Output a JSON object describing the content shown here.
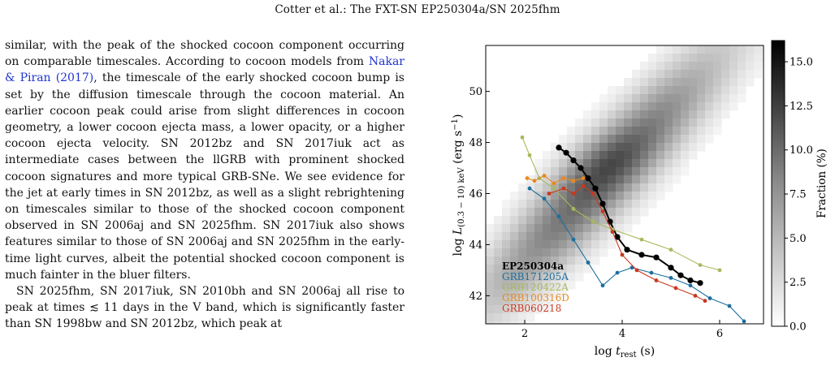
{
  "header": {
    "running_title": "Cotter et al.: The FXT-SN EP250304a/SN 2025fhm"
  },
  "body_text": {
    "p1_a": "similar, with the peak of the shocked cocoon component occurring on comparable timescales. According to cocoon models from ",
    "p1_cite": "Nakar & Piran (2017)",
    "p1_b": ", the timescale of the early shocked cocoon bump is set by the diffusion timescale through the cocoon material. An earlier cocoon peak could arise from slight differences in cocoon geometry, a lower cocoon ejecta mass, a lower opacity, or a higher cocoon ejecta velocity. SN 2012bz and SN 2017iuk act as intermediate cases between the llGRB with prominent shocked cocoon signatures and more typical GRB-SNe. We see evidence for the jet at early times in SN 2012bz, as well as a slight rebrightening on timescales similar to those of the shocked cocoon component observed in SN 2006aj and SN 2025fhm. SN 2017iuk also shows features similar to those of SN 2006aj and SN 2025fhm in the early-time light curves, albeit the potential shocked cocoon component is much fainter in the bluer filters.",
    "p2": "SN 2025fhm, SN 2017iuk, SN 2010bh and SN 2006aj all rise to peak at times ≲ 11 days in the V band, which is significantly faster than SN 1998bw and SN 2012bz, which peak at"
  },
  "chart_data": {
    "type": "scatter",
    "xlabel": "log t_rest (s)",
    "ylabel": "log L_(0.3−10) keV (erg s−1)",
    "xlim": [
      1.2,
      6.9
    ],
    "ylim": [
      40.9,
      51.8
    ],
    "x_ticks": [
      "2",
      "4",
      "6"
    ],
    "y_ticks": [
      "42",
      "44",
      "46",
      "48",
      "50"
    ],
    "colorbar": {
      "label": "Fraction (%)",
      "range": [
        0,
        16.2
      ],
      "ticks": [
        "0.0",
        "2.5",
        "5.0",
        "7.5",
        "10.0",
        "12.5",
        "15.0"
      ]
    },
    "background": "2D histogram of GRB X-ray afterglow light curves, grey density band",
    "series": [
      {
        "name": "EP250304a",
        "color": "#000000",
        "points": [
          [
            2.7,
            47.8
          ],
          [
            2.85,
            47.6
          ],
          [
            3.0,
            47.3
          ],
          [
            3.15,
            47.0
          ],
          [
            3.3,
            46.6
          ],
          [
            3.45,
            46.2
          ],
          [
            3.6,
            45.6
          ],
          [
            3.75,
            44.9
          ],
          [
            3.9,
            44.3
          ],
          [
            4.1,
            43.8
          ],
          [
            4.4,
            43.6
          ],
          [
            4.7,
            43.5
          ],
          [
            5.0,
            43.1
          ],
          [
            5.2,
            42.8
          ],
          [
            5.4,
            42.6
          ],
          [
            5.6,
            42.5
          ]
        ]
      },
      {
        "name": "GRB171205A",
        "color": "#1c6e9e",
        "points": [
          [
            2.1,
            46.2
          ],
          [
            2.4,
            45.8
          ],
          [
            2.7,
            45.1
          ],
          [
            3.0,
            44.2
          ],
          [
            3.3,
            43.3
          ],
          [
            3.6,
            42.4
          ],
          [
            3.9,
            42.9
          ],
          [
            4.2,
            43.1
          ],
          [
            4.6,
            42.9
          ],
          [
            5.0,
            42.7
          ],
          [
            5.4,
            42.4
          ],
          [
            5.8,
            41.9
          ],
          [
            6.2,
            41.6
          ],
          [
            6.5,
            41.0
          ]
        ]
      },
      {
        "name": "GRB120422A",
        "color": "#a9b85c",
        "points": [
          [
            1.95,
            48.2
          ],
          [
            2.1,
            47.5
          ],
          [
            2.3,
            46.6
          ],
          [
            2.6,
            46.2
          ],
          [
            3.0,
            45.4
          ],
          [
            3.4,
            44.9
          ],
          [
            3.8,
            44.6
          ],
          [
            4.4,
            44.2
          ],
          [
            5.0,
            43.8
          ],
          [
            5.6,
            43.2
          ],
          [
            6.0,
            43.0
          ]
        ]
      },
      {
        "name": "GRB100316D",
        "color": "#e8891f",
        "points": [
          [
            2.05,
            46.6
          ],
          [
            2.2,
            46.5
          ],
          [
            2.4,
            46.7
          ],
          [
            2.6,
            46.4
          ],
          [
            2.8,
            46.6
          ],
          [
            3.0,
            46.5
          ],
          [
            3.2,
            46.6
          ]
        ]
      },
      {
        "name": "GRB060218",
        "color": "#c9381f",
        "points": [
          [
            2.5,
            46.0
          ],
          [
            2.8,
            46.2
          ],
          [
            3.0,
            46.0
          ],
          [
            3.2,
            46.3
          ],
          [
            3.4,
            46.0
          ],
          [
            3.6,
            45.3
          ],
          [
            3.8,
            44.5
          ],
          [
            4.0,
            43.6
          ],
          [
            4.3,
            43.0
          ],
          [
            4.7,
            42.6
          ],
          [
            5.1,
            42.3
          ],
          [
            5.5,
            42.0
          ],
          [
            5.7,
            41.8
          ]
        ]
      }
    ]
  }
}
